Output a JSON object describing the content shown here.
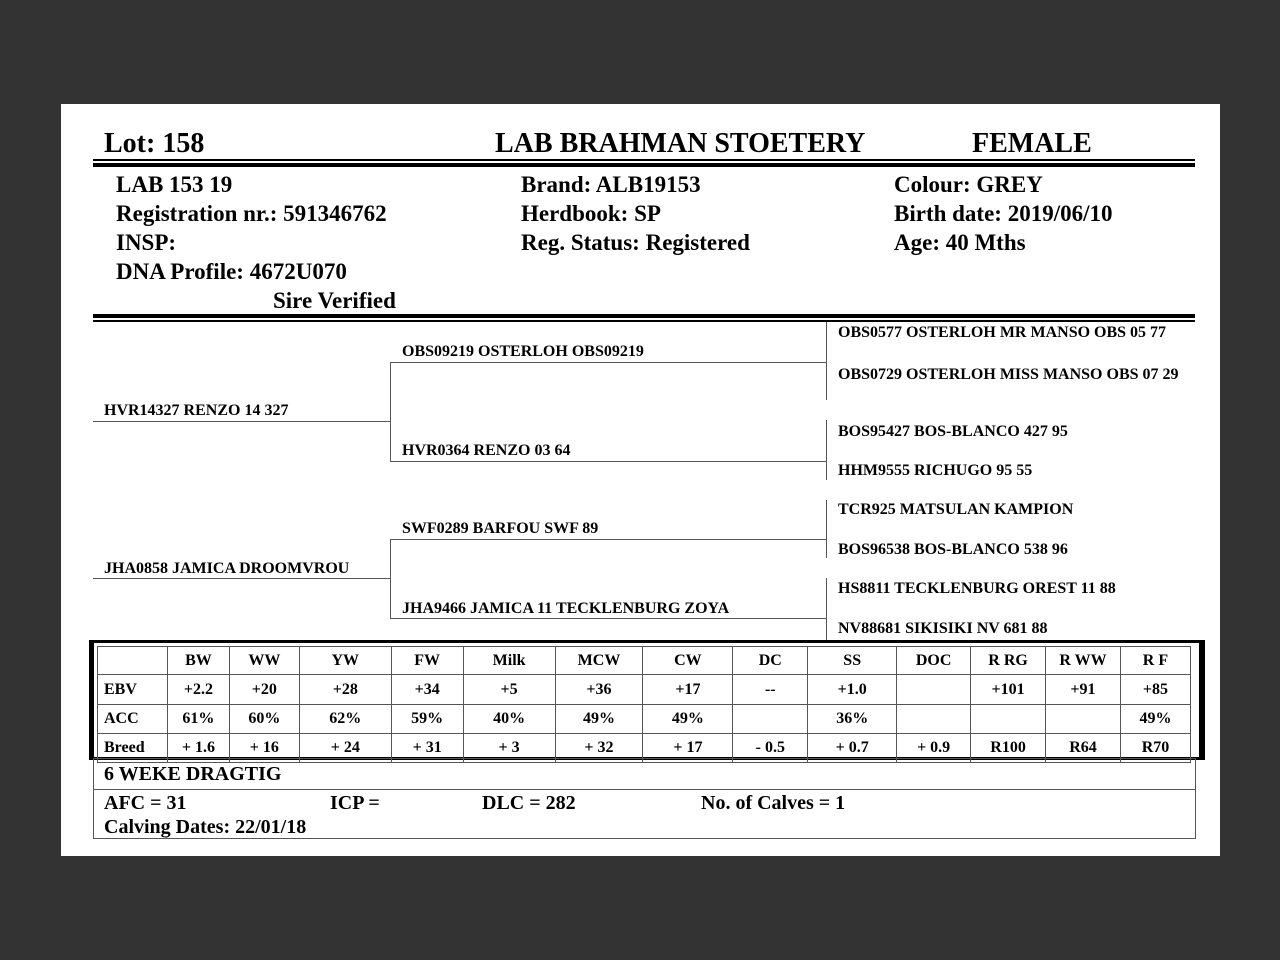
{
  "header": {
    "lot": "Lot:  158",
    "breeder": "LAB BRAHMAN STOETERY",
    "sex": "FEMALE"
  },
  "info": {
    "name": "LAB 153 19",
    "registration": "Registration nr.: 591346762",
    "insp": "INSP:",
    "dna": "DNA Profile:  4672U070",
    "sire_verified": "Sire Verified",
    "brand": "Brand:  ALB19153",
    "herdbook": "Herdbook: SP",
    "reg_status": "Reg. Status: Registered",
    "colour": "Colour:  GREY",
    "birth_date": "Birth date:  2019/06/10",
    "age": "Age: 40 Mths"
  },
  "pedigree": {
    "sire": "HVR14327 RENZO 14 327",
    "dam": "JHA0858 JAMICA DROOMVROU",
    "sire_sire": "OBS09219 OSTERLOH OBS09219",
    "sire_dam": "HVR0364 RENZO 03 64",
    "dam_sire": "SWF0289 BARFOU SWF 89",
    "dam_dam": "JHA9466 JAMICA 11 TECKLENBURG ZOYA",
    "gen3": [
      "OBS0577 OSTERLOH MR MANSO OBS 05 77",
      "OBS0729 OSTERLOH MISS MANSO OBS 07 29",
      "BOS95427 BOS-BLANCO 427 95",
      "HHM9555 RICHUGO 95 55",
      "TCR925 MATSULAN KAMPION",
      "BOS96538 BOS-BLANCO 538 96",
      "HS8811 TECKLENBURG OREST 11 88",
      "NV88681 SIKISIKI NV 681 88"
    ]
  },
  "ebv_table": {
    "headers": [
      "",
      "BW",
      "WW",
      "YW",
      "FW",
      "Milk",
      "MCW",
      "CW",
      "DC",
      "SS",
      "DOC",
      "R RG",
      "R WW",
      "R F"
    ],
    "rows": [
      [
        "EBV",
        "+2.2",
        "+20",
        "+28",
        "+34",
        "+5",
        "+36",
        "+17",
        "--",
        "+1.0",
        "",
        "+101",
        "+91",
        "+85"
      ],
      [
        "ACC",
        "61%",
        "60%",
        "62%",
        "59%",
        "40%",
        "49%",
        "49%",
        "",
        "36%",
        "",
        "",
        "",
        "49%"
      ],
      [
        "Breed",
        "+ 1.6",
        "+ 16",
        "+ 24",
        "+ 31",
        "+ 3",
        "+ 32",
        "+ 17",
        "- 0.5",
        "+ 0.7",
        "+ 0.9",
        "R100",
        "R64",
        "R70"
      ]
    ]
  },
  "footer": {
    "status": "6 WEKE DRAGTIG",
    "afc": "AFC = 31",
    "icp": "ICP =",
    "dlc": "DLC = 282",
    "calves": "No. of Calves = 1",
    "calving_dates": "Calving Dates: 22/01/18"
  }
}
